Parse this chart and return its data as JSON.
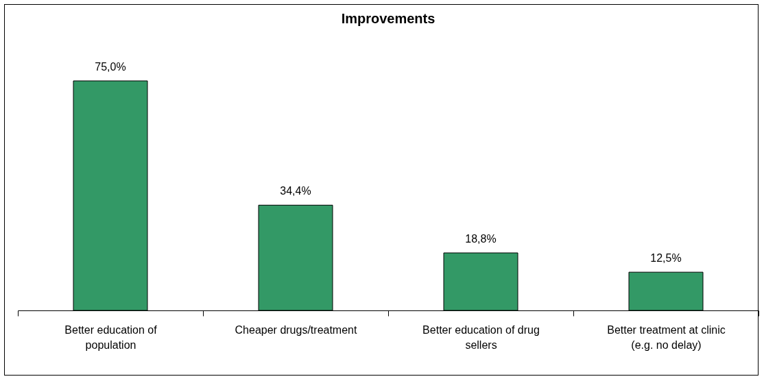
{
  "chart_data": {
    "type": "bar",
    "title": "Improvements",
    "categories": [
      "Better education of population",
      "Cheaper drugs/treatment",
      "Better education of drug sellers",
      "Better treatment at clinic (e.g. no delay)"
    ],
    "values": [
      75.0,
      34.4,
      18.8,
      12.5
    ],
    "value_labels": [
      "75,0%",
      "34,4%",
      "18,8%",
      "12,5%"
    ],
    "color": "#339966"
  }
}
